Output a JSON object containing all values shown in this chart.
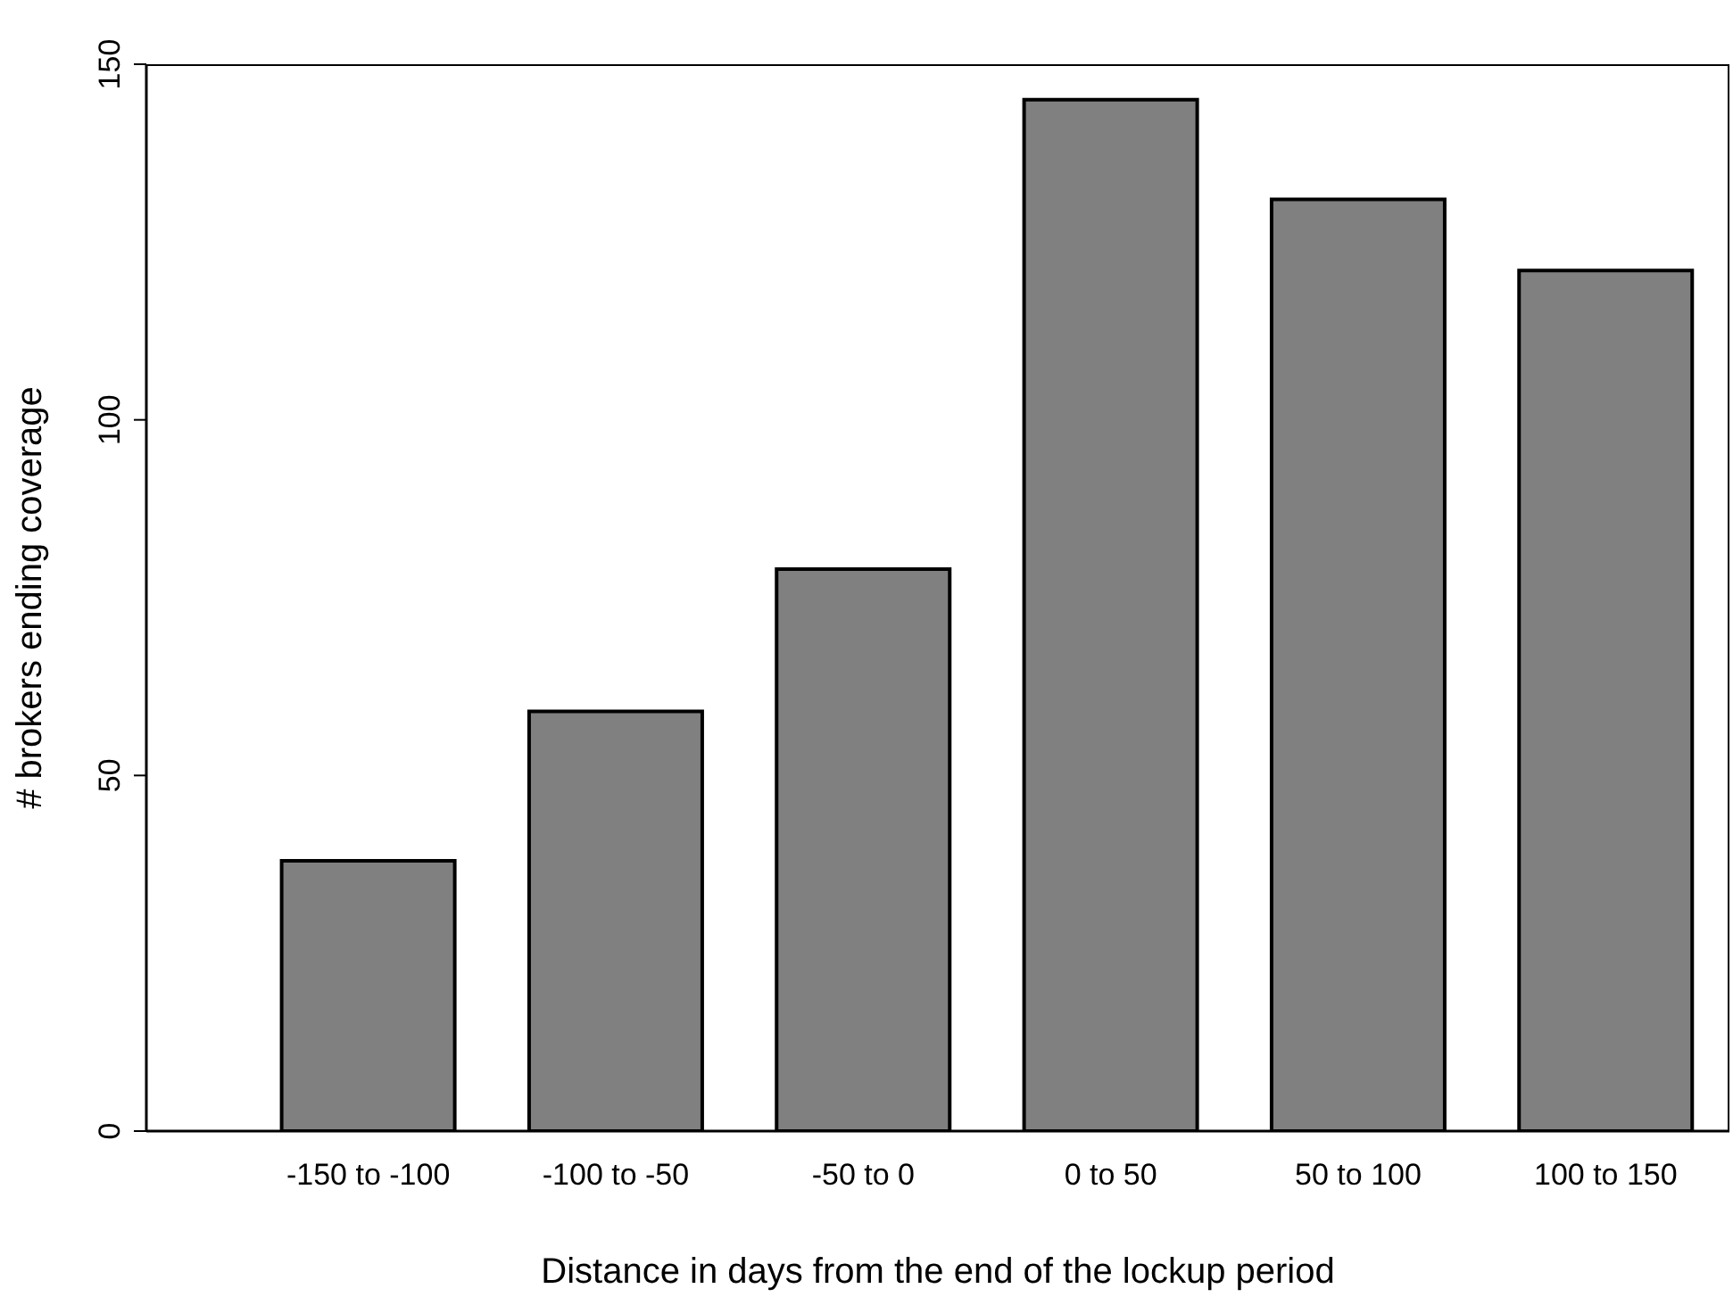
{
  "chart_data": {
    "type": "bar",
    "xlabel": "Distance in days from the end of the lockup period",
    "ylabel": "# brokers ending coverage",
    "categories": [
      "-150 to -100",
      "-100 to -50",
      "-50 to 0",
      "0 to 50",
      "50 to 100",
      "100  to 150"
    ],
    "values": [
      38,
      59,
      79,
      145,
      131,
      121
    ],
    "color": "#808080",
    "ylim": [
      0,
      150
    ],
    "yticks": [
      0,
      50,
      100,
      150
    ],
    "grid": false
  }
}
